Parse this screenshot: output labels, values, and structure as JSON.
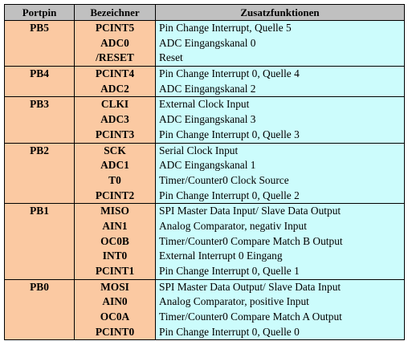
{
  "headers": [
    "Portpin",
    "Bezeichner",
    "Zusatzfunktionen"
  ],
  "groups": [
    {
      "pin": "PB5",
      "rows": [
        {
          "name": "PCINT5",
          "func": "Pin Change Interrupt, Quelle 5"
        },
        {
          "name": "ADC0",
          "func": "ADC Eingangskanal 0"
        },
        {
          "name": "/RESET",
          "func": "Reset"
        }
      ]
    },
    {
      "pin": "PB4",
      "rows": [
        {
          "name": "PCINT4",
          "func": "Pin Change Interrupt 0, Quelle 4"
        },
        {
          "name": "ADC2",
          "func": "ADC Eingangskanal 2"
        }
      ]
    },
    {
      "pin": "PB3",
      "rows": [
        {
          "name": "CLKI",
          "func": "External Clock Input"
        },
        {
          "name": "ADC3",
          "func": "ADC Eingangskanal 3"
        },
        {
          "name": "PCINT3",
          "func": "Pin Change Interrupt 0, Quelle 3"
        }
      ]
    },
    {
      "pin": "PB2",
      "rows": [
        {
          "name": "SCK",
          "func": "Serial Clock Input"
        },
        {
          "name": "ADC1",
          "func": "ADC Eingangskanal 1"
        },
        {
          "name": "T0",
          "func": "Timer/Counter0 Clock Source"
        },
        {
          "name": "PCINT2",
          "func": "Pin Change Interrupt 0, Quelle 2"
        }
      ]
    },
    {
      "pin": "PB1",
      "rows": [
        {
          "name": "MISO",
          "func": "SPI Master Data Input/ Slave Data Output"
        },
        {
          "name": "AIN1",
          "func": "Analog Comparator, negativ Input"
        },
        {
          "name": "OC0B",
          "func": "Timer/Counter0 Compare Match B Output"
        },
        {
          "name": "INT0",
          "func": "External Interrupt 0 Eingang"
        },
        {
          "name": "PCINT1",
          "func": "Pin Change Interrupt 0, Quelle 1"
        }
      ]
    },
    {
      "pin": "PB0",
      "rows": [
        {
          "name": "MOSI",
          "func": "SPI Master Data Output/ Slave Data Input"
        },
        {
          "name": "AIN0",
          "func": "Analog Comparator, positive Input"
        },
        {
          "name": "OC0A",
          "func": "Timer/Counter0 Compare Match A Output"
        },
        {
          "name": "PCINT0",
          "func": "Pin Change Interrupt 0, Quelle 0"
        }
      ]
    }
  ]
}
